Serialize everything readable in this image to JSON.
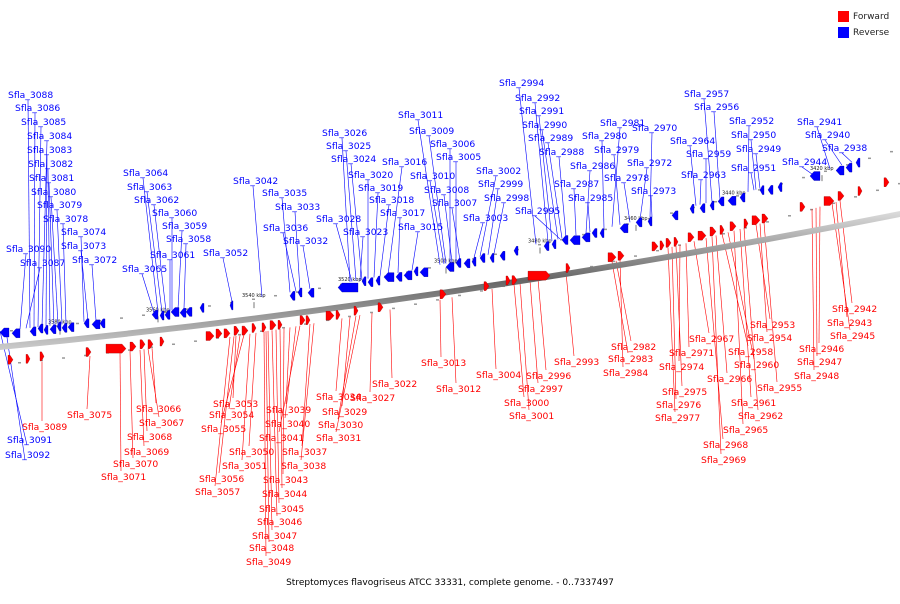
{
  "legend": {
    "forward": {
      "label": "Forward",
      "color": "#ff0000"
    },
    "reverse": {
      "label": "Reverse",
      "color": "#0000ff"
    }
  },
  "caption": "Streptomyces flavogriseus ATCC 33331, complete genome. - 0..7337497",
  "ticks": [
    "3580 kbp",
    "3560 kbp",
    "3540 kbp",
    "3520 kbp",
    "3500 kbp",
    "3480 kbp",
    "3460 kbp",
    "3440 kbp",
    "3420 kbp"
  ],
  "reverse_genes": [
    "Sfla_3088",
    "Sfla_3086",
    "Sfla_3085",
    "Sfla_3084",
    "Sfla_3083",
    "Sfla_3082",
    "Sfla_3081",
    "Sfla_3080",
    "Sfla_3079",
    "Sfla_3078",
    "Sfla_3074",
    "Sfla_3073",
    "Sfla_3072",
    "Sfla_3090",
    "Sfla_3087",
    "Sfla_3064",
    "Sfla_3063",
    "Sfla_3062",
    "Sfla_3060",
    "Sfla_3059",
    "Sfla_3058",
    "Sfla_3061",
    "Sfla_3065",
    "Sfla_3052",
    "Sfla_3042",
    "Sfla_3035",
    "Sfla_3033",
    "Sfla_3036",
    "Sfla_3032",
    "Sfla_3028",
    "Sfla_3026",
    "Sfla_3025",
    "Sfla_3024",
    "Sfla_3020",
    "Sfla_3019",
    "Sfla_3018",
    "Sfla_3023",
    "Sfla_3016",
    "Sfla_3017",
    "Sfla_3015",
    "Sfla_3011",
    "Sfla_3009",
    "Sfla_3006",
    "Sfla_3005",
    "Sfla_3010",
    "Sfla_3008",
    "Sfla_3007",
    "Sfla_3002",
    "Sfla_2999",
    "Sfla_2998",
    "Sfla_3003",
    "Sfla_2994",
    "Sfla_2992",
    "Sfla_2991",
    "Sfla_2990",
    "Sfla_2989",
    "Sfla_2988",
    "Sfla_2995",
    "Sfla_2987",
    "Sfla_2986",
    "Sfla_2985",
    "Sfla_2981",
    "Sfla_2980",
    "Sfla_2979",
    "Sfla_2978",
    "Sfla_2970",
    "Sfla_2972",
    "Sfla_2973",
    "Sfla_2957",
    "Sfla_2956",
    "Sfla_2964",
    "Sfla_2952",
    "Sfla_2959",
    "Sfla_2950",
    "Sfla_2949",
    "Sfla_2963",
    "Sfla_2951",
    "Sfla_2941",
    "Sfla_2940",
    "Sfla_2938",
    "Sfla_2944",
    "Sfla_3091",
    "Sfla_3092"
  ],
  "forward_genes": [
    "Sfla_3089",
    "Sfla_3075",
    "Sfla_3066",
    "Sfla_3067",
    "Sfla_3068",
    "Sfla_3069",
    "Sfla_3070",
    "Sfla_3071",
    "Sfla_3053",
    "Sfla_3054",
    "Sfla_3055",
    "Sfla_3056",
    "Sfla_3057",
    "Sfla_3050",
    "Sfla_3051",
    "Sfla_3039",
    "Sfla_3040",
    "Sfla_3041",
    "Sfla_3037",
    "Sfla_3038",
    "Sfla_3043",
    "Sfla_3044",
    "Sfla_3045",
    "Sfla_3046",
    "Sfla_3047",
    "Sfla_3048",
    "Sfla_3049",
    "Sfla_3034",
    "Sfla_3029",
    "Sfla_3030",
    "Sfla_3031",
    "Sfla_3027",
    "Sfla_3022",
    "Sfla_3013",
    "Sfla_3012",
    "Sfla_3004",
    "Sfla_3000",
    "Sfla_3001",
    "Sfla_2997",
    "Sfla_2996",
    "Sfla_2993",
    "Sfla_2982",
    "Sfla_2983",
    "Sfla_2984",
    "Sfla_2967",
    "Sfla_2971",
    "Sfla_2974",
    "Sfla_2975",
    "Sfla_2976",
    "Sfla_2977",
    "Sfla_2958",
    "Sfla_2960",
    "Sfla_2966",
    "Sfla_2961",
    "Sfla_2962",
    "Sfla_2965",
    "Sfla_2968",
    "Sfla_2969",
    "Sfla_2953",
    "Sfla_2954",
    "Sfla_2955",
    "Sfla_2942",
    "Sfla_2943",
    "Sfla_2945",
    "Sfla_2946",
    "Sfla_2947",
    "Sfla_2948"
  ]
}
